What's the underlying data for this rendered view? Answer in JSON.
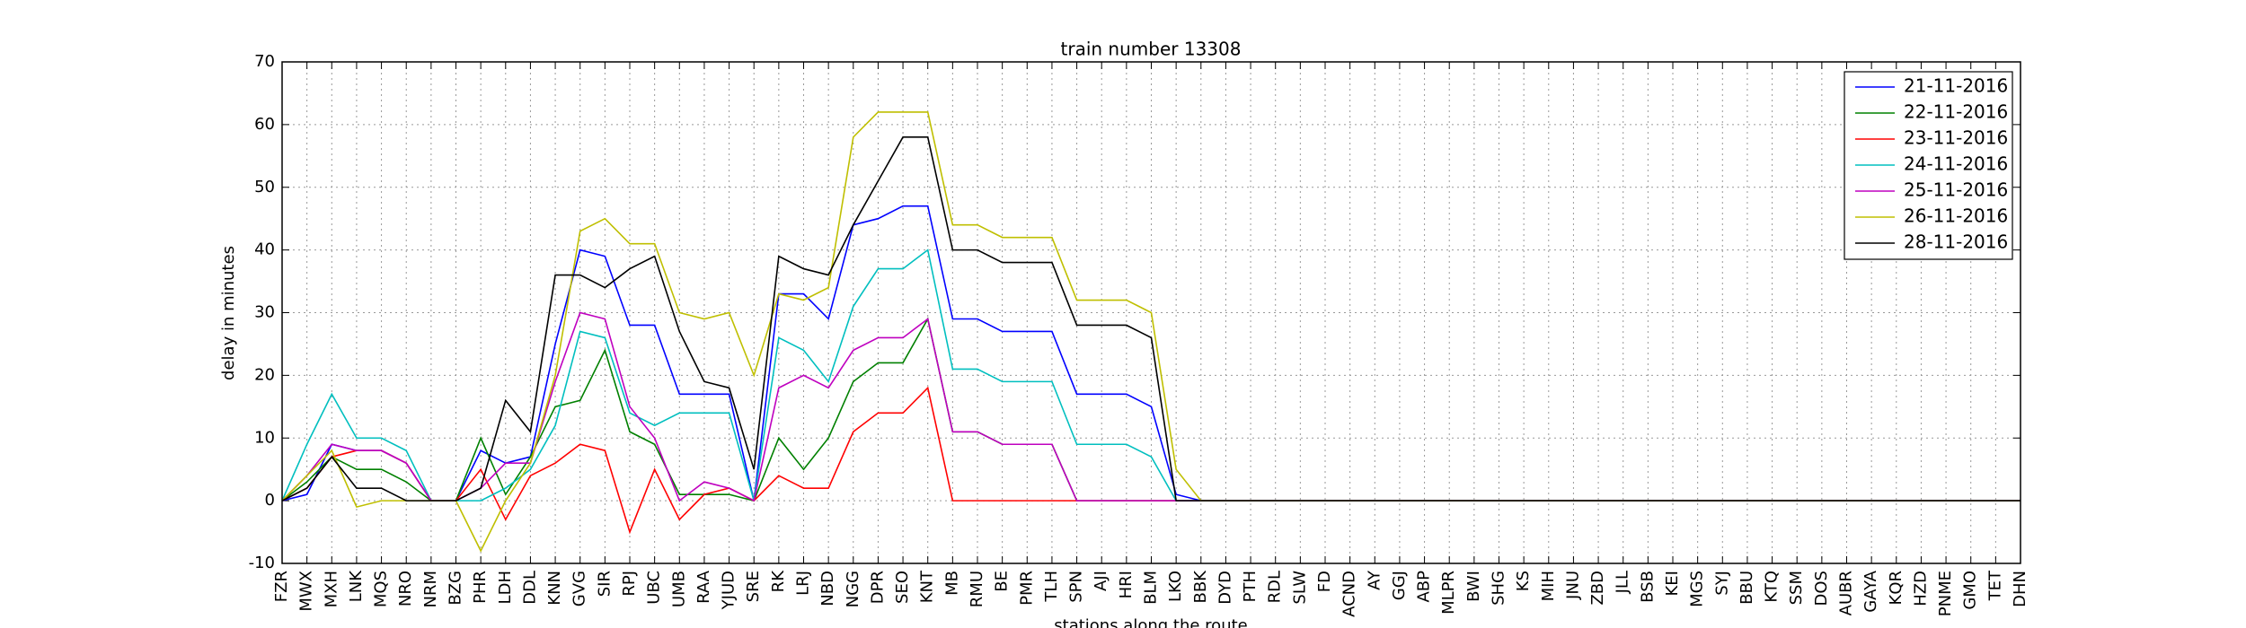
{
  "chart_data": {
    "type": "line",
    "title": "train number 13308",
    "x_label": "stations along the route",
    "y_label": "delay in minutes",
    "categories": [
      "FZR",
      "MWX",
      "MXH",
      "LNK",
      "MQS",
      "NRO",
      "NRM",
      "BZG",
      "PHR",
      "LDH",
      "DDL",
      "KNN",
      "GVG",
      "SIR",
      "RPJ",
      "UBC",
      "UMB",
      "RAA",
      "YJUD",
      "SRE",
      "RK",
      "LRJ",
      "NBD",
      "NGG",
      "DPR",
      "SEO",
      "KNT",
      "MB",
      "RMU",
      "BE",
      "PMR",
      "TLH",
      "SPN",
      "AJI",
      "HRI",
      "BLM",
      "LKO",
      "BBK",
      "DYD",
      "PTH",
      "RDL",
      "SLW",
      "FD",
      "ACND",
      "AY",
      "GGJ",
      "ABP",
      "MLPR",
      "BWI",
      "SHG",
      "KS",
      "MIH",
      "JNU",
      "ZBD",
      "JLL",
      "BSB",
      "KEI",
      "MGS",
      "SYJ",
      "BBU",
      "KTQ",
      "SSM",
      "DOS",
      "AUBR",
      "GAYA",
      "KQR",
      "HZD",
      "PNME",
      "GMO",
      "TET",
      "DHN"
    ],
    "series": [
      {
        "name": "21-11-2016",
        "color": "#0000ff",
        "values": [
          0,
          1,
          9,
          8,
          8,
          6,
          0,
          0,
          8,
          6,
          7,
          25,
          40,
          39,
          28,
          28,
          17,
          17,
          17,
          0,
          33,
          33,
          29,
          44,
          45,
          47,
          47,
          29,
          29,
          27,
          27,
          27,
          17,
          17,
          17,
          15,
          1,
          0,
          0,
          0,
          0,
          0,
          0,
          0,
          0,
          0,
          0,
          0,
          0,
          0,
          0,
          0,
          0,
          0,
          0,
          0,
          0,
          0,
          0,
          0,
          0,
          0,
          0,
          0,
          0,
          0,
          0,
          0,
          0,
          0,
          0
        ]
      },
      {
        "name": "22-11-2016",
        "color": "#008000",
        "values": [
          0,
          3,
          7,
          5,
          5,
          3,
          0,
          0,
          10,
          1,
          7,
          15,
          16,
          24,
          11,
          9,
          1,
          1,
          1,
          0,
          10,
          5,
          10,
          19,
          22,
          22,
          29,
          11,
          11,
          9,
          9,
          9,
          0,
          0,
          0,
          0,
          0,
          0,
          0,
          0,
          0,
          0,
          0,
          0,
          0,
          0,
          0,
          0,
          0,
          0,
          0,
          0,
          0,
          0,
          0,
          0,
          0,
          0,
          0,
          0,
          0,
          0,
          0,
          0,
          0,
          0,
          0,
          0,
          0,
          0,
          0
        ]
      },
      {
        "name": "23-11-2016",
        "color": "#ff0000",
        "values": [
          0,
          2,
          7,
          8,
          8,
          6,
          0,
          0,
          5,
          -3,
          4,
          6,
          9,
          8,
          -5,
          5,
          -3,
          1,
          2,
          0,
          4,
          2,
          2,
          11,
          14,
          14,
          18,
          0,
          0,
          0,
          0,
          0,
          0,
          0,
          0,
          0,
          0,
          0,
          0,
          0,
          0,
          0,
          0,
          0,
          0,
          0,
          0,
          0,
          0,
          0,
          0,
          0,
          0,
          0,
          0,
          0,
          0,
          0,
          0,
          0,
          0,
          0,
          0,
          0,
          0,
          0,
          0,
          0,
          0,
          0,
          0
        ]
      },
      {
        "name": "24-11-2016",
        "color": "#00bfbf",
        "values": [
          0,
          9,
          17,
          10,
          10,
          8,
          0,
          0,
          0,
          2,
          5,
          12,
          27,
          26,
          14,
          12,
          14,
          14,
          14,
          0,
          26,
          24,
          19,
          31,
          37,
          37,
          40,
          21,
          21,
          19,
          19,
          19,
          9,
          9,
          9,
          7,
          0,
          0,
          0,
          0,
          0,
          0,
          0,
          0,
          0,
          0,
          0,
          0,
          0,
          0,
          0,
          0,
          0,
          0,
          0,
          0,
          0,
          0,
          0,
          0,
          0,
          0,
          0,
          0,
          0,
          0,
          0,
          0,
          0,
          0,
          0
        ]
      },
      {
        "name": "25-11-2016",
        "color": "#bf00bf",
        "values": [
          0,
          4,
          9,
          8,
          8,
          6,
          0,
          0,
          2,
          6,
          6,
          19,
          30,
          29,
          15,
          10,
          0,
          3,
          2,
          0,
          18,
          20,
          18,
          24,
          26,
          26,
          29,
          11,
          11,
          9,
          9,
          9,
          0,
          0,
          0,
          0,
          0,
          0,
          0,
          0,
          0,
          0,
          0,
          0,
          0,
          0,
          0,
          0,
          0,
          0,
          0,
          0,
          0,
          0,
          0,
          0,
          0,
          0,
          0,
          0,
          0,
          0,
          0,
          0,
          0,
          0,
          0,
          0,
          0,
          0,
          0
        ]
      },
      {
        "name": "26-11-2016",
        "color": "#bfbf00",
        "values": [
          0,
          4,
          8,
          -1,
          0,
          0,
          0,
          0,
          -8,
          0,
          6,
          20,
          43,
          45,
          41,
          41,
          30,
          29,
          30,
          20,
          33,
          32,
          34,
          58,
          62,
          62,
          62,
          44,
          44,
          42,
          42,
          42,
          32,
          32,
          32,
          30,
          5,
          0,
          0,
          0,
          0,
          0,
          0,
          0,
          0,
          0,
          0,
          0,
          0,
          0,
          0,
          0,
          0,
          0,
          0,
          0,
          0,
          0,
          0,
          0,
          0,
          0,
          0,
          0,
          0,
          0,
          0,
          0,
          0,
          0,
          0
        ]
      },
      {
        "name": "28-11-2016",
        "color": "#000000",
        "values": [
          0,
          2,
          7,
          2,
          2,
          0,
          0,
          0,
          2,
          16,
          11,
          36,
          36,
          34,
          37,
          39,
          27,
          19,
          18,
          5,
          39,
          37,
          36,
          44,
          51,
          58,
          58,
          40,
          40,
          38,
          38,
          38,
          28,
          28,
          28,
          26,
          0,
          0,
          0,
          0,
          0,
          0,
          0,
          0,
          0,
          0,
          0,
          0,
          0,
          0,
          0,
          0,
          0,
          0,
          0,
          0,
          0,
          0,
          0,
          0,
          0,
          0,
          0,
          0,
          0,
          0,
          0,
          0,
          0,
          0,
          0
        ]
      }
    ],
    "ylim": [
      -10,
      70
    ],
    "yticks": [
      -10,
      0,
      10,
      20,
      30,
      40,
      50,
      60,
      70
    ],
    "grid": true,
    "legend": "upper right"
  }
}
